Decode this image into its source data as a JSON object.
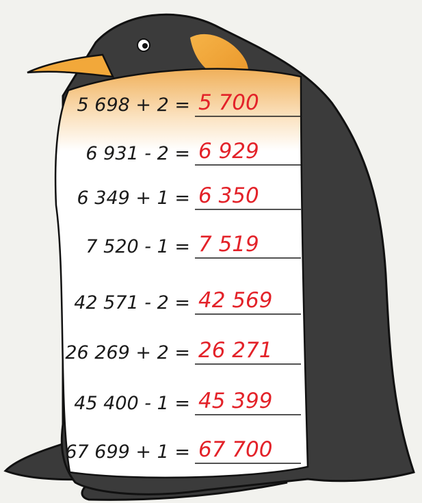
{
  "exercises": [
    {
      "expression": "5 698 + 2 =",
      "answer": "5 700"
    },
    {
      "expression": "6 931 - 2 =",
      "answer": "6 929"
    },
    {
      "expression": "6 349 + 1 =",
      "answer": "6 350"
    },
    {
      "expression": "7 520 - 1 =",
      "answer": "7 519"
    },
    {
      "expression": "42 571 - 2 =",
      "answer": "42 569"
    },
    {
      "expression": "26 269 + 2 =",
      "answer": "26 271"
    },
    {
      "expression": "45 400 - 1 =",
      "answer": "45 399"
    },
    {
      "expression": "67 699 + 1 =",
      "answer": "67 700"
    }
  ]
}
